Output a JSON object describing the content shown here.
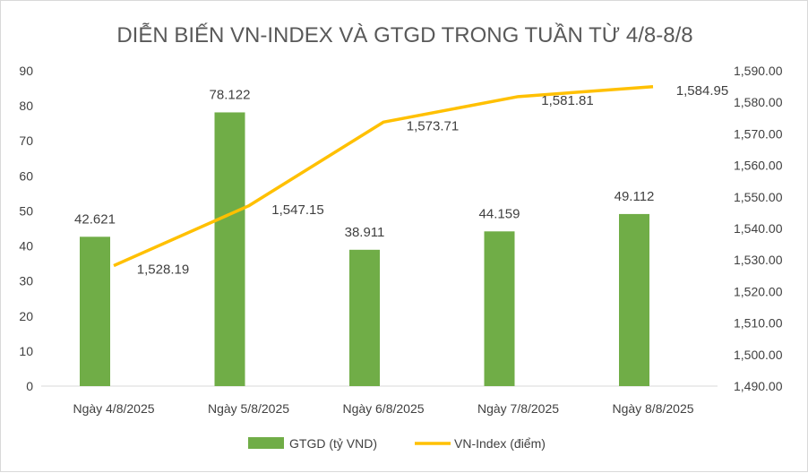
{
  "chart_data": {
    "type": "bar+line",
    "title": "DIỄN BIẾN VN-INDEX VÀ GTGD TRONG TUẦN TỪ 4/8-8/8",
    "categories": [
      "Ngày 4/8/2025",
      "Ngày 5/8/2025",
      "Ngày 6/8/2025",
      "Ngày 7/8/2025",
      "Ngày 8/8/2025"
    ],
    "series": [
      {
        "name": "GTGD (tỷ VND)",
        "type": "bar",
        "axis": "left",
        "color": "#70AD47",
        "values": [
          42.621,
          78.122,
          38.911,
          44.159,
          49.112
        ],
        "labels": [
          "42.621",
          "78.122",
          "38.911",
          "44.159",
          "49.112"
        ]
      },
      {
        "name": "VN-Index (điểm)",
        "type": "line",
        "axis": "right",
        "color": "#FFC000",
        "values": [
          1528.19,
          1547.15,
          1573.71,
          1581.81,
          1584.95
        ],
        "labels": [
          "1,528.19",
          "1,547.15",
          "1,573.71",
          "1,581.81",
          "1,584.95"
        ]
      }
    ],
    "y_left": {
      "range": [
        0,
        90
      ],
      "ticks": [
        "0",
        "10",
        "20",
        "30",
        "40",
        "50",
        "60",
        "70",
        "80",
        "90"
      ]
    },
    "y_right": {
      "range": [
        1490,
        1590
      ],
      "ticks": [
        "1,490.00",
        "1,500.00",
        "1,510.00",
        "1,520.00",
        "1,530.00",
        "1,540.00",
        "1,550.00",
        "1,560.00",
        "1,570.00",
        "1,580.00",
        "1,590.00"
      ]
    },
    "grid": false,
    "legend": "bottom"
  }
}
